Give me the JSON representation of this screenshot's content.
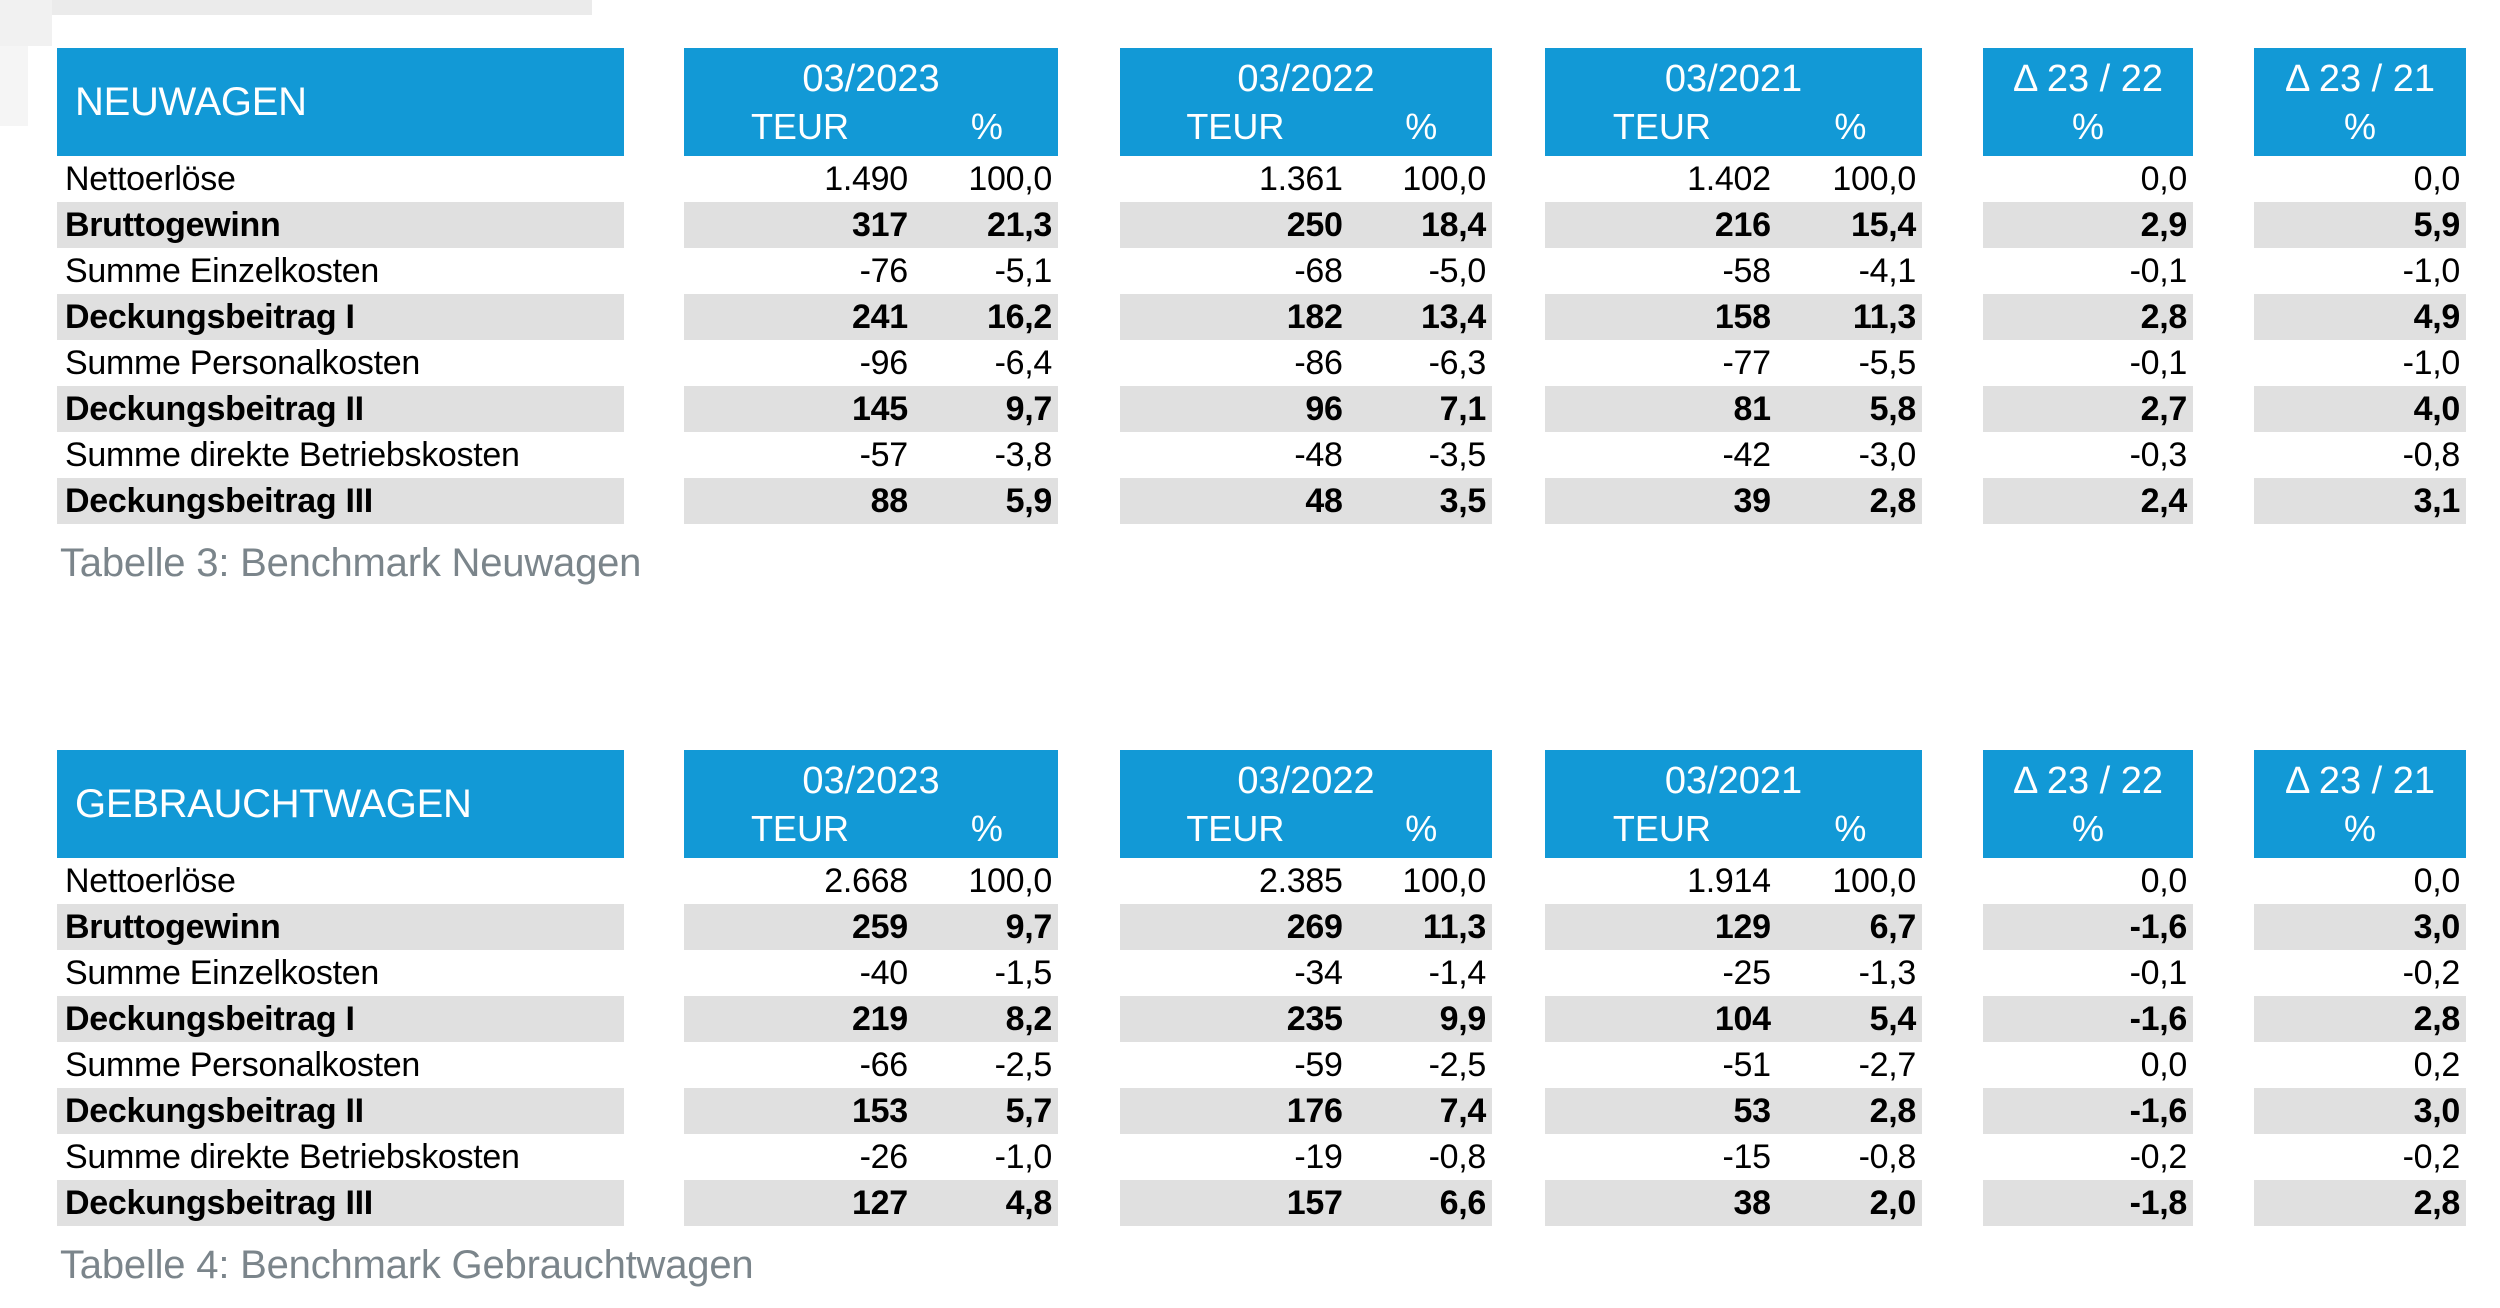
{
  "colors": {
    "header_blue": "#1299d6",
    "stripe_gray": "#e0e0e0",
    "caption_gray": "#7b858b",
    "text_black": "#000000",
    "background": "#ffffff"
  },
  "columns": {
    "periods": [
      {
        "label": "03/2023",
        "unit_value": "TEUR",
        "unit_share": "%"
      },
      {
        "label": "03/2022",
        "unit_value": "TEUR",
        "unit_share": "%"
      },
      {
        "label": "03/2021",
        "unit_value": "TEUR",
        "unit_share": "%"
      }
    ],
    "deltas": [
      {
        "label": "Δ 23 / 22",
        "unit": "%"
      },
      {
        "label": "Δ 23 / 21",
        "unit": "%"
      }
    ]
  },
  "tables": [
    {
      "title": "NEUWAGEN",
      "caption": "Tabelle 3: Benchmark Neuwagen",
      "rows": [
        {
          "label": "Nettoerlöse",
          "bold": false,
          "periods": [
            {
              "teur": "1.490",
              "pct": "100,0"
            },
            {
              "teur": "1.361",
              "pct": "100,0"
            },
            {
              "teur": "1.402",
              "pct": "100,0"
            }
          ],
          "deltas": [
            "0,0",
            "0,0"
          ]
        },
        {
          "label": "Bruttogewinn",
          "bold": true,
          "periods": [
            {
              "teur": "317",
              "pct": "21,3"
            },
            {
              "teur": "250",
              "pct": "18,4"
            },
            {
              "teur": "216",
              "pct": "15,4"
            }
          ],
          "deltas": [
            "2,9",
            "5,9"
          ]
        },
        {
          "label": "Summe Einzelkosten",
          "bold": false,
          "periods": [
            {
              "teur": "-76",
              "pct": "-5,1"
            },
            {
              "teur": "-68",
              "pct": "-5,0"
            },
            {
              "teur": "-58",
              "pct": "-4,1"
            }
          ],
          "deltas": [
            "-0,1",
            "-1,0"
          ]
        },
        {
          "label": "Deckungsbeitrag I",
          "bold": true,
          "periods": [
            {
              "teur": "241",
              "pct": "16,2"
            },
            {
              "teur": "182",
              "pct": "13,4"
            },
            {
              "teur": "158",
              "pct": "11,3"
            }
          ],
          "deltas": [
            "2,8",
            "4,9"
          ]
        },
        {
          "label": "Summe Personalkosten",
          "bold": false,
          "periods": [
            {
              "teur": "-96",
              "pct": "-6,4"
            },
            {
              "teur": "-86",
              "pct": "-6,3"
            },
            {
              "teur": "-77",
              "pct": "-5,5"
            }
          ],
          "deltas": [
            "-0,1",
            "-1,0"
          ]
        },
        {
          "label": "Deckungsbeitrag II",
          "bold": true,
          "periods": [
            {
              "teur": "145",
              "pct": "9,7"
            },
            {
              "teur": "96",
              "pct": "7,1"
            },
            {
              "teur": "81",
              "pct": "5,8"
            }
          ],
          "deltas": [
            "2,7",
            "4,0"
          ]
        },
        {
          "label": "Summe direkte Betriebskosten",
          "bold": false,
          "periods": [
            {
              "teur": "-57",
              "pct": "-3,8"
            },
            {
              "teur": "-48",
              "pct": "-3,5"
            },
            {
              "teur": "-42",
              "pct": "-3,0"
            }
          ],
          "deltas": [
            "-0,3",
            "-0,8"
          ]
        },
        {
          "label": "Deckungsbeitrag III",
          "bold": true,
          "periods": [
            {
              "teur": "88",
              "pct": "5,9"
            },
            {
              "teur": "48",
              "pct": "3,5"
            },
            {
              "teur": "39",
              "pct": "2,8"
            }
          ],
          "deltas": [
            "2,4",
            "3,1"
          ]
        }
      ]
    },
    {
      "title": "GEBRAUCHTWAGEN",
      "caption": "Tabelle 4: Benchmark Gebrauchtwagen",
      "rows": [
        {
          "label": "Nettoerlöse",
          "bold": false,
          "periods": [
            {
              "teur": "2.668",
              "pct": "100,0"
            },
            {
              "teur": "2.385",
              "pct": "100,0"
            },
            {
              "teur": "1.914",
              "pct": "100,0"
            }
          ],
          "deltas": [
            "0,0",
            "0,0"
          ]
        },
        {
          "label": "Bruttogewinn",
          "bold": true,
          "periods": [
            {
              "teur": "259",
              "pct": "9,7"
            },
            {
              "teur": "269",
              "pct": "11,3"
            },
            {
              "teur": "129",
              "pct": "6,7"
            }
          ],
          "deltas": [
            "-1,6",
            "3,0"
          ]
        },
        {
          "label": "Summe Einzelkosten",
          "bold": false,
          "periods": [
            {
              "teur": "-40",
              "pct": "-1,5"
            },
            {
              "teur": "-34",
              "pct": "-1,4"
            },
            {
              "teur": "-25",
              "pct": "-1,3"
            }
          ],
          "deltas": [
            "-0,1",
            "-0,2"
          ]
        },
        {
          "label": "Deckungsbeitrag I",
          "bold": true,
          "periods": [
            {
              "teur": "219",
              "pct": "8,2"
            },
            {
              "teur": "235",
              "pct": "9,9"
            },
            {
              "teur": "104",
              "pct": "5,4"
            }
          ],
          "deltas": [
            "-1,6",
            "2,8"
          ]
        },
        {
          "label": "Summe Personalkosten",
          "bold": false,
          "periods": [
            {
              "teur": "-66",
              "pct": "-2,5"
            },
            {
              "teur": "-59",
              "pct": "-2,5"
            },
            {
              "teur": "-51",
              "pct": "-2,7"
            }
          ],
          "deltas": [
            "0,0",
            "0,2"
          ]
        },
        {
          "label": "Deckungsbeitrag II",
          "bold": true,
          "periods": [
            {
              "teur": "153",
              "pct": "5,7"
            },
            {
              "teur": "176",
              "pct": "7,4"
            },
            {
              "teur": "53",
              "pct": "2,8"
            }
          ],
          "deltas": [
            "-1,6",
            "3,0"
          ]
        },
        {
          "label": "Summe direkte Betriebskosten",
          "bold": false,
          "periods": [
            {
              "teur": "-26",
              "pct": "-1,0"
            },
            {
              "teur": "-19",
              "pct": "-0,8"
            },
            {
              "teur": "-15",
              "pct": "-0,8"
            }
          ],
          "deltas": [
            "-0,2",
            "-0,2"
          ]
        },
        {
          "label": "Deckungsbeitrag III",
          "bold": true,
          "periods": [
            {
              "teur": "127",
              "pct": "4,8"
            },
            {
              "teur": "157",
              "pct": "6,6"
            },
            {
              "teur": "38",
              "pct": "2,0"
            }
          ],
          "deltas": [
            "-1,8",
            "2,8"
          ]
        }
      ]
    }
  ]
}
